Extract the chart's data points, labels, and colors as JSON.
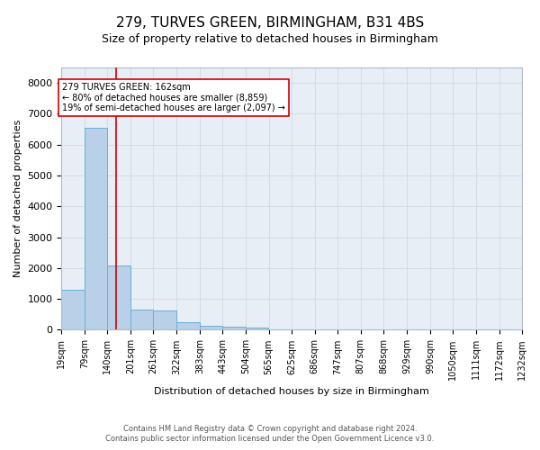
{
  "title": "279, TURVES GREEN, BIRMINGHAM, B31 4BS",
  "subtitle": "Size of property relative to detached houses in Birmingham",
  "xlabel": "Distribution of detached houses by size in Birmingham",
  "ylabel": "Number of detached properties",
  "footer_line1": "Contains HM Land Registry data © Crown copyright and database right 2024.",
  "footer_line2": "Contains public sector information licensed under the Open Government Licence v3.0.",
  "bar_values": [
    1300,
    6550,
    2090,
    650,
    640,
    250,
    130,
    100,
    65,
    0,
    0,
    0,
    0,
    0,
    0,
    0,
    0,
    0,
    0,
    0
  ],
  "bin_edges": [
    19,
    79,
    140,
    201,
    261,
    322,
    383,
    443,
    504,
    565,
    625,
    686,
    747,
    807,
    868,
    929,
    990,
    1050,
    1111,
    1172,
    1232
  ],
  "bar_color": "#b8d0e8",
  "bar_edgecolor": "#6aaed6",
  "property_size": 162,
  "vline_color": "#cc0000",
  "annotation_text": "279 TURVES GREEN: 162sqm\n← 80% of detached houses are smaller (8,859)\n19% of semi-detached houses are larger (2,097) →",
  "annotation_box_edgecolor": "#cc0000",
  "annotation_box_facecolor": "#ffffff",
  "ylim": [
    0,
    8500
  ],
  "yticks": [
    0,
    1000,
    2000,
    3000,
    4000,
    5000,
    6000,
    7000,
    8000
  ],
  "grid_color": "#d0d8e0",
  "background_color": "#e8eef5",
  "title_fontsize": 11,
  "subtitle_fontsize": 9,
  "tick_labelsize": 7,
  "ylabel_fontsize": 8,
  "xlabel_fontsize": 8,
  "footer_fontsize": 6
}
